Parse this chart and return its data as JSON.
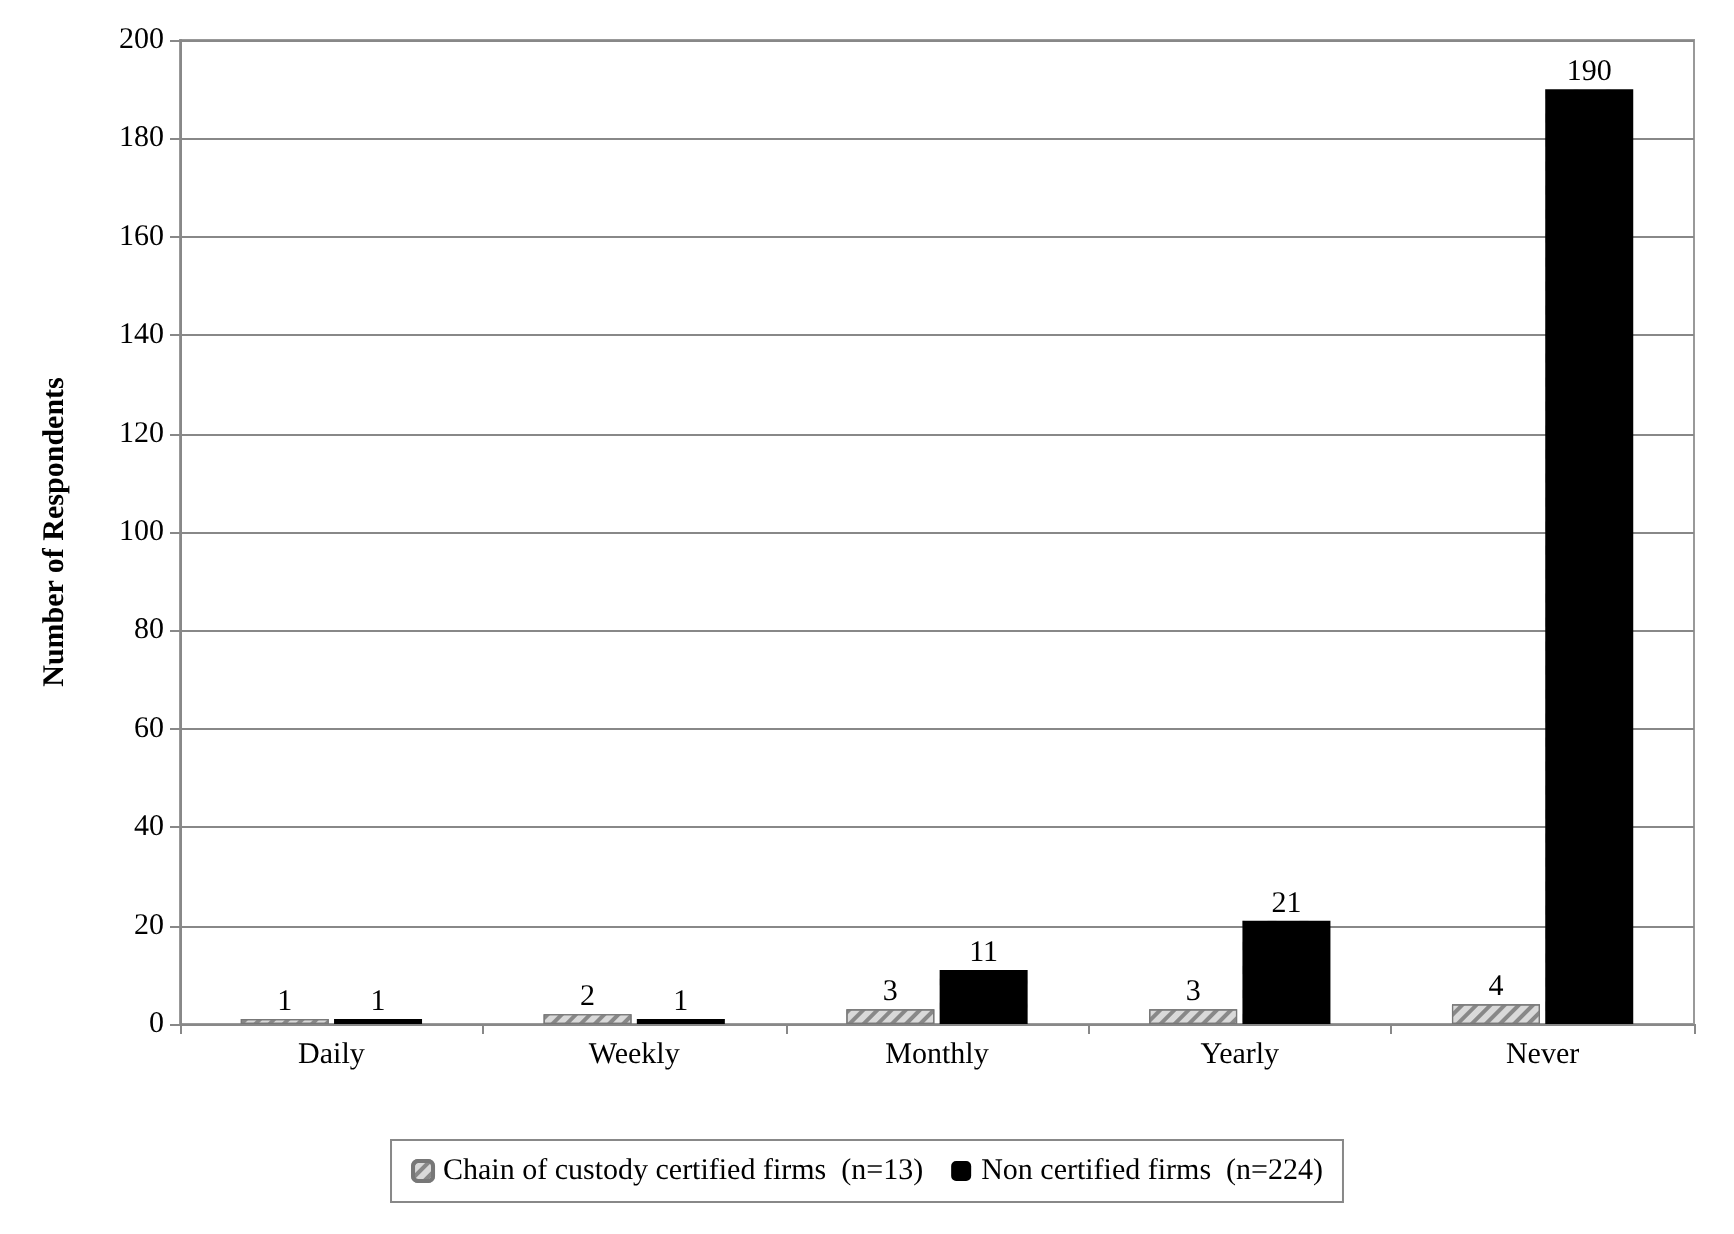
{
  "chart_data": {
    "type": "bar",
    "ylabel": "Number of Respondents",
    "categories": [
      "Daily",
      "Weekly",
      "Monthly",
      "Yearly",
      "Never"
    ],
    "series": [
      {
        "name": "Chain of custody certified firms  (n=13)",
        "color": "#d9d9d9",
        "values": [
          1,
          2,
          3,
          3,
          4
        ]
      },
      {
        "name": "Non certified firms  (n=224)",
        "color": "#000000",
        "values": [
          1,
          1,
          11,
          21,
          190
        ]
      }
    ],
    "ylim": [
      0,
      200
    ],
    "yticks": [
      0,
      20,
      40,
      60,
      80,
      100,
      120,
      140,
      160,
      180,
      200
    ],
    "grid": "y",
    "legend": "bottom",
    "data_labels": true
  }
}
